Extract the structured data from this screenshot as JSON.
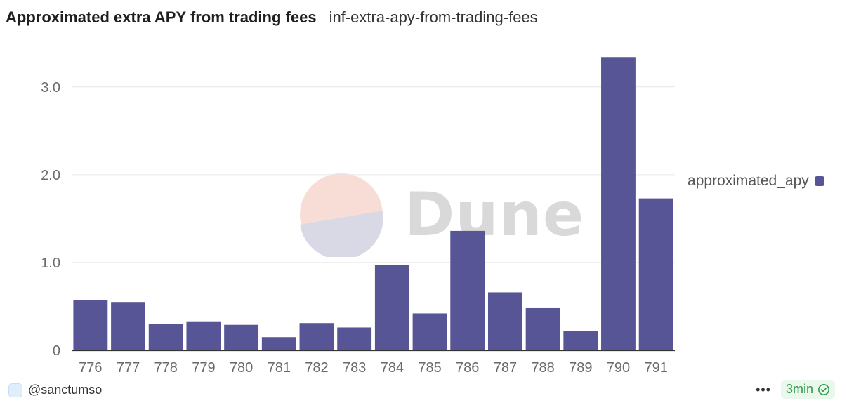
{
  "header": {
    "title": "Approximated extra APY from trading fees",
    "subtitle": "inf-extra-apy-from-trading-fees"
  },
  "watermark": {
    "text": "Dune"
  },
  "footer": {
    "author": "@sanctumso",
    "more_icon": "more-horizontal-icon",
    "refresh_badge": "3min",
    "badge_icon": "check-circle-icon"
  },
  "colors": {
    "bar": "#575595",
    "grid": "#e6e6e6",
    "axis": "#333333",
    "badge_text": "#2f9c49",
    "badge_bg": "#e9f7ec"
  },
  "chart_data": {
    "type": "bar",
    "categories": [
      "776",
      "777",
      "778",
      "779",
      "780",
      "781",
      "782",
      "783",
      "784",
      "785",
      "786",
      "787",
      "788",
      "789",
      "790",
      "791"
    ],
    "series": [
      {
        "name": "approximated_apy",
        "values": [
          0.57,
          0.55,
          0.3,
          0.33,
          0.29,
          0.15,
          0.31,
          0.26,
          0.97,
          0.42,
          1.36,
          0.66,
          0.48,
          0.22,
          3.34,
          1.73
        ]
      }
    ],
    "y_ticks": [
      "0",
      "1.0",
      "2.0",
      "3.0"
    ],
    "y_tick_values": [
      0,
      1,
      2,
      3
    ],
    "ylim": [
      0,
      3.35
    ],
    "grid": true,
    "legend_position": "right",
    "title": "Approximated extra APY from trading fees"
  }
}
